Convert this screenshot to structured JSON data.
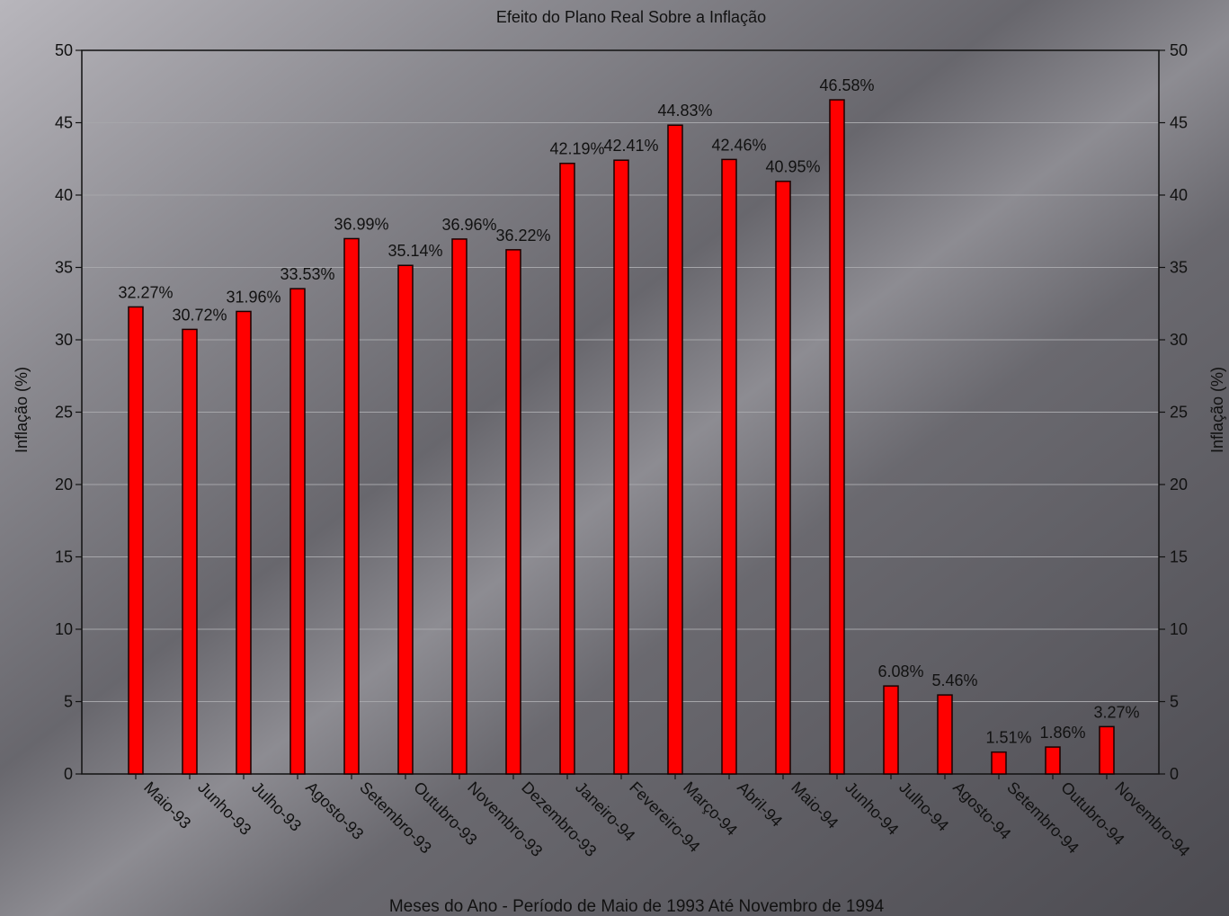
{
  "chart_data": {
    "type": "bar",
    "title": "Efeito do Plano Real Sobre a Inflação",
    "xlabel": "Meses do Ano - Período de Maio de 1993 Até Novembro de 1994",
    "ylabel": "Inflação (%)",
    "ylim": [
      0,
      50
    ],
    "yticks": [
      0,
      5,
      10,
      15,
      20,
      25,
      30,
      35,
      40,
      45,
      50
    ],
    "grid": true,
    "label_suffix": "%",
    "bar_color": "#ff0000",
    "categories": [
      "Maio-93",
      "Junho-93",
      "Julho-93",
      "Agosto-93",
      "Setembro-93",
      "Outubro-93",
      "Novembro-93",
      "Dezembro-93",
      "Janeiro-94",
      "Fevereiro-94",
      "Março-94",
      "Abril-94",
      "Maio-94",
      "Junho-94",
      "Julho-94",
      "Agosto-94",
      "Setembro-94",
      "Outubro-94",
      "Novembro-94"
    ],
    "values": [
      32.27,
      30.72,
      31.96,
      33.53,
      36.99,
      35.14,
      36.96,
      36.22,
      42.19,
      42.41,
      44.83,
      42.46,
      40.95,
      46.58,
      6.08,
      5.46,
      1.51,
      1.86,
      3.27
    ]
  }
}
